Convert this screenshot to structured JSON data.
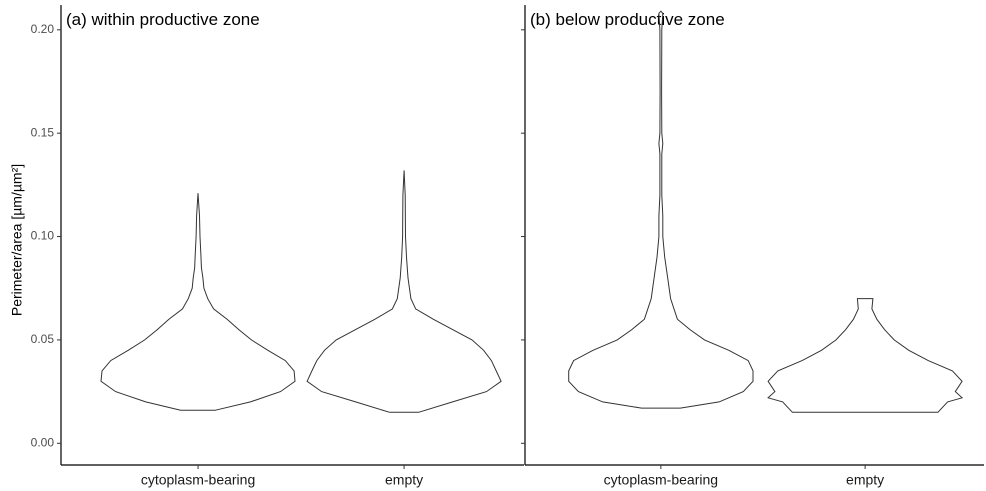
{
  "chart_data": {
    "type": "violin",
    "ylabel": "Perimeter/area [µm/µm²]",
    "ylim": [
      -0.0105,
      0.212
    ],
    "yticks": [
      {
        "value": 0,
        "label": "0.00"
      },
      {
        "value": 0.05,
        "label": "0.05"
      },
      {
        "value": 0.1,
        "label": "0.10"
      },
      {
        "value": 0.15,
        "label": "0.15"
      },
      {
        "value": 0.2,
        "label": "0.20"
      }
    ],
    "color": "#333333",
    "panels": [
      {
        "title": "(a) within productive zone",
        "categories": [
          "cytoplasm-bearing",
          "empty"
        ],
        "violins": [
          {
            "y": [
              0.016,
              0.02,
              0.025,
              0.03,
              0.035,
              0.04,
              0.045,
              0.05,
              0.055,
              0.06,
              0.065,
              0.07,
              0.075,
              0.08,
              0.085,
              0.09,
              0.1,
              0.11,
              0.121
            ],
            "density": [
              0.18,
              0.54,
              0.85,
              1.0,
              0.99,
              0.9,
              0.72,
              0.55,
              0.42,
              0.3,
              0.16,
              0.1,
              0.06,
              0.05,
              0.035,
              0.03,
              0.02,
              0.015,
              0
            ]
          },
          {
            "y": [
              0.015,
              0.02,
              0.025,
              0.03,
              0.035,
              0.04,
              0.045,
              0.05,
              0.055,
              0.06,
              0.065,
              0.07,
              0.08,
              0.09,
              0.1,
              0.12,
              0.132
            ],
            "density": [
              0.15,
              0.5,
              0.85,
              1.0,
              0.95,
              0.9,
              0.82,
              0.7,
              0.5,
              0.3,
              0.12,
              0.07,
              0.04,
              0.025,
              0.015,
              0.012,
              0
            ]
          }
        ]
      },
      {
        "title": "(b) below productive zone",
        "categories": [
          "cytoplasm-bearing",
          "empty"
        ],
        "violins": [
          {
            "y": [
              0.017,
              0.02,
              0.025,
              0.03,
              0.035,
              0.04,
              0.045,
              0.05,
              0.055,
              0.06,
              0.07,
              0.08,
              0.09,
              0.1,
              0.11,
              0.12,
              0.14,
              0.145,
              0.15,
              0.17,
              0.2,
              0.208,
              0.209
            ],
            "density": [
              0.2,
              0.6,
              0.85,
              0.95,
              0.95,
              0.9,
              0.7,
              0.45,
              0.3,
              0.17,
              0.1,
              0.07,
              0.04,
              0.02,
              0.02,
              0.01,
              0.01,
              0.02,
              0.01,
              0.008,
              0.01,
              0.02,
              0
            ]
          },
          {
            "y": [
              0.015,
              0.02,
              0.022,
              0.025,
              0.03,
              0.035,
              0.04,
              0.045,
              0.05,
              0.055,
              0.06,
              0.065,
              0.07
            ],
            "density": [
              0.75,
              0.85,
              1.0,
              0.93,
              1.0,
              0.9,
              0.65,
              0.45,
              0.3,
              0.2,
              0.12,
              0.07,
              0.08
            ]
          }
        ]
      }
    ]
  }
}
